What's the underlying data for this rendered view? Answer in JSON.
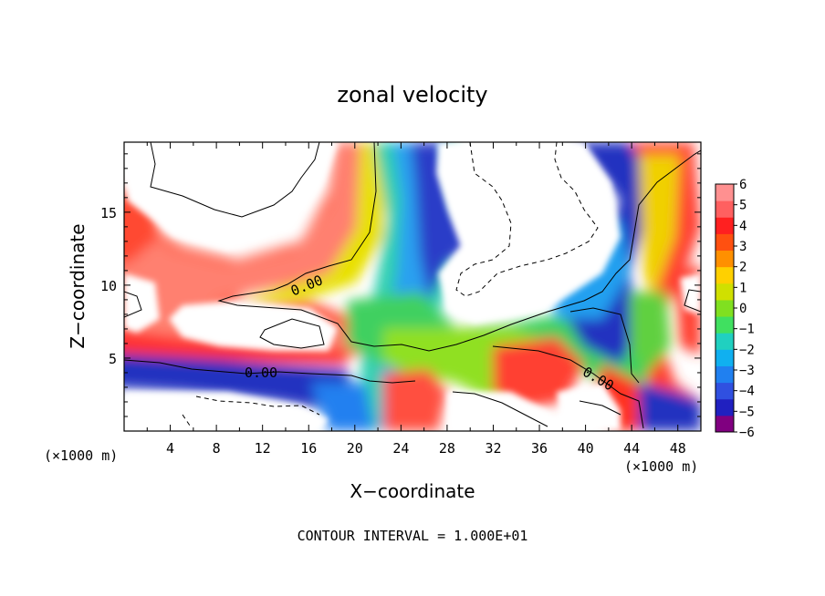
{
  "chart_data": {
    "type": "heatmap",
    "title": "zonal velocity",
    "xlabel": "X−coordinate",
    "ylabel": "Z−coordinate",
    "x_unit": "(×1000 m)",
    "xlim": [
      0,
      50
    ],
    "ylim": [
      0,
      19.8
    ],
    "x_ticks": [
      4,
      8,
      12,
      16,
      20,
      24,
      28,
      32,
      36,
      40,
      44,
      48
    ],
    "y_ticks": [
      5,
      10,
      15
    ],
    "colorbar": {
      "min": -6,
      "max": 6,
      "ticks": [
        6,
        5,
        4,
        3,
        2,
        1,
        0,
        -1,
        -2,
        -3,
        -4,
        -5,
        -6
      ],
      "colors": [
        "#800080",
        "#2020c0",
        "#3050e0",
        "#2080f0",
        "#10b0f0",
        "#20d0c0",
        "#40e060",
        "#80e020",
        "#d0e000",
        "#ffd000",
        "#ff9000",
        "#ff5010",
        "#ff2020",
        "#ff6060",
        "#ff9090"
      ]
    },
    "contour_labels": [
      "0.00",
      "0.00",
      "0.00"
    ],
    "contour_interval": "CONTOUR INTERVAL = 1.000E+01",
    "grid": false
  }
}
